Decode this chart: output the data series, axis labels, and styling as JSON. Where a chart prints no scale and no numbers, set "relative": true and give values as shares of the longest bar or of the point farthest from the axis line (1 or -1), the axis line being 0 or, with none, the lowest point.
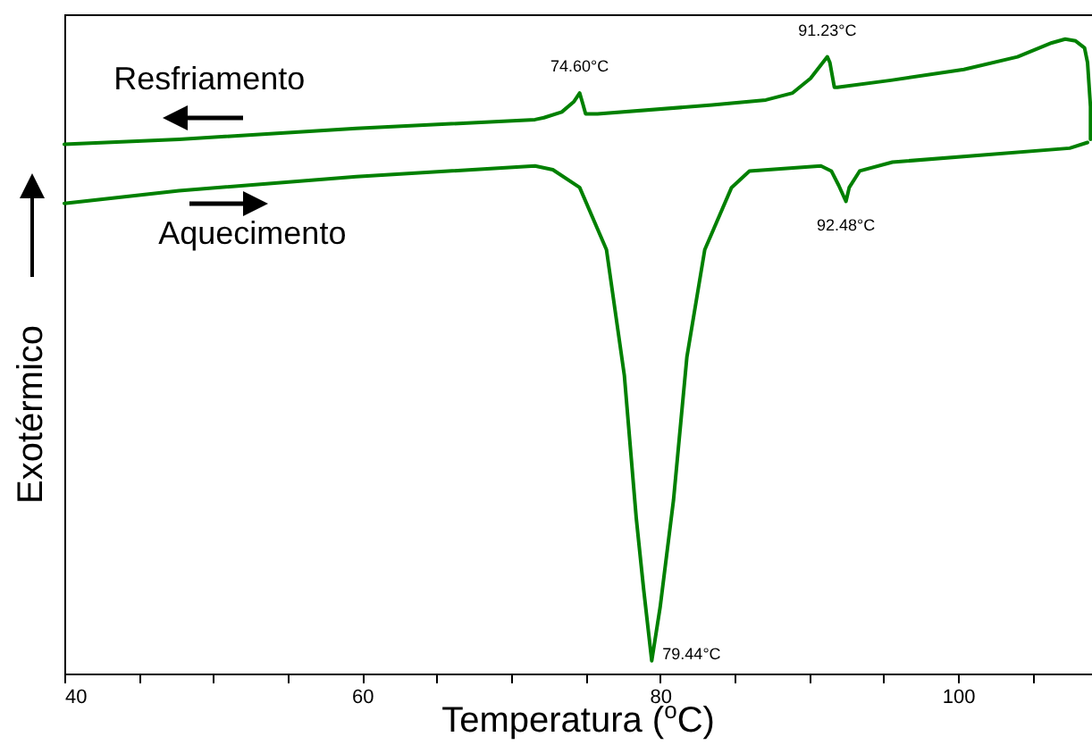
{
  "chart_data": {
    "type": "line",
    "xlabel": "Temperatura ($^{o}$C)",
    "ylabel": "Exotérmico",
    "relative": true,
    "xlim": [
      40,
      109
    ],
    "xticks": [
      40,
      {
        "value": 45,
        "label": null
      },
      {
        "value": 50,
        "label": null
      },
      {
        "value": 55,
        "label": null
      },
      60,
      {
        "value": 65,
        "label": null
      },
      {
        "value": 70,
        "label": null
      },
      {
        "value": 75,
        "label": null
      },
      80,
      {
        "value": 85,
        "label": null
      },
      {
        "value": 90,
        "label": null
      },
      {
        "value": 95,
        "label": null
      },
      100,
      {
        "value": 105,
        "label": null
      }
    ],
    "grid": false,
    "series": [
      {
        "name": "Resfriamento",
        "color": "#008000",
        "x": [
          40,
          47.7,
          59.6,
          71.6,
          72.2,
          73.4,
          74.2,
          74.6,
          74.8,
          75.0,
          75.8,
          83.5,
          87.1,
          88.9,
          90.1,
          91.23,
          91.4,
          91.7,
          91.9,
          95.5,
          100.4,
          104.0,
          106.3,
          107.2,
          107.9,
          108.5,
          108.7,
          108.9,
          108.9
        ],
        "values": [
          0.834,
          0.842,
          0.859,
          0.873,
          0.876,
          0.885,
          0.901,
          0.915,
          0.899,
          0.882,
          0.882,
          0.896,
          0.904,
          0.915,
          0.938,
          0.972,
          0.963,
          0.924,
          0.924,
          0.935,
          0.952,
          0.972,
          0.994,
          1.0,
          0.997,
          0.986,
          0.963,
          0.893,
          0.842
        ]
      },
      {
        "name": "Aquecimento",
        "color": "#008000",
        "x": [
          40,
          47.7,
          59.6,
          71.6,
          72.8,
          74.6,
          76.4,
          77.6,
          78.4,
          78.9,
          79.44,
          80.0,
          80.9,
          81.8,
          83.0,
          84.8,
          86.0,
          90.8,
          91.5,
          92.0,
          92.48,
          92.7,
          93.4,
          95.6,
          101.5,
          107.5,
          108.7
        ],
        "values": [
          0.741,
          0.761,
          0.783,
          0.8,
          0.794,
          0.766,
          0.668,
          0.47,
          0.245,
          0.132,
          0.02,
          0.104,
          0.273,
          0.499,
          0.668,
          0.766,
          0.792,
          0.8,
          0.792,
          0.769,
          0.744,
          0.766,
          0.792,
          0.806,
          0.817,
          0.828,
          0.837
        ]
      }
    ],
    "annotations": [
      {
        "text": "74.60°C",
        "x": 74.6,
        "y": 0.915
      },
      {
        "text": "91.23°C",
        "x": 91.23,
        "y": 0.972
      },
      {
        "text": "79.44°C",
        "x": 79.44,
        "y": 0.02
      },
      {
        "text": "92.48°C",
        "x": 92.48,
        "y": 0.744
      }
    ]
  }
}
